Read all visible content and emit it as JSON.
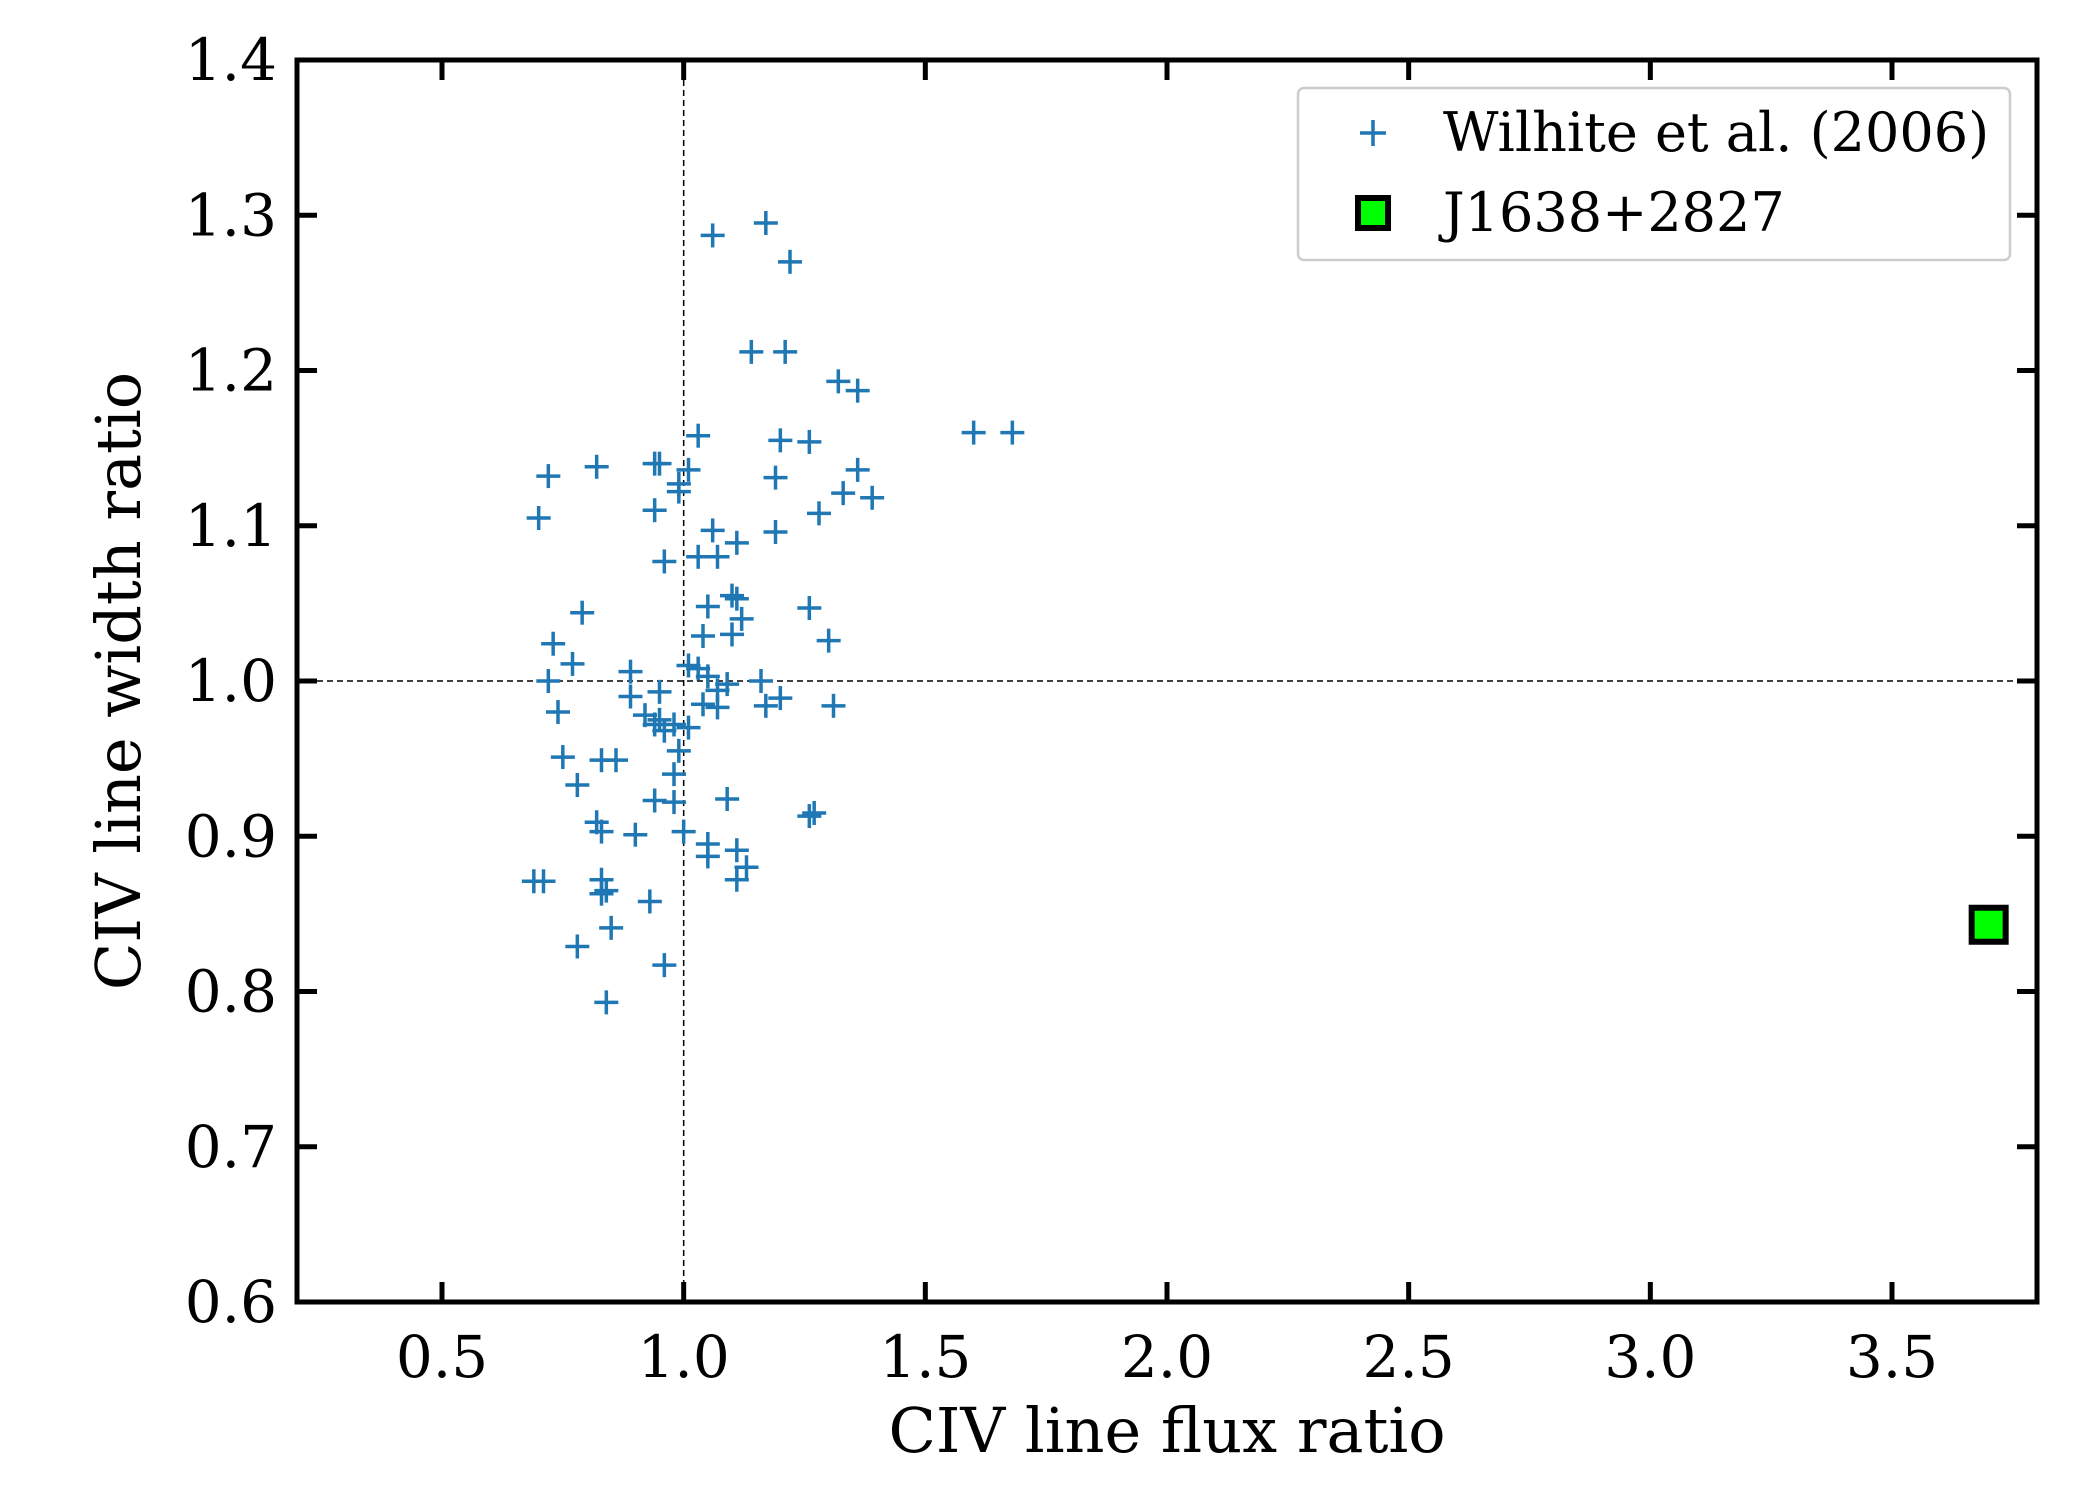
{
  "chart_data": {
    "type": "scatter",
    "xlabel": "CIV line flux  ratio",
    "ylabel": "CIV line width ratio",
    "xlim": [
      0.2,
      3.8
    ],
    "ylim": [
      0.6,
      1.4
    ],
    "x_ticks": [
      "0.5",
      "1.0",
      "1.5",
      "2.0",
      "2.5",
      "3.0",
      "3.5"
    ],
    "y_ticks": [
      "0.6",
      "0.7",
      "0.8",
      "0.9",
      "1.0",
      "1.1",
      "1.2",
      "1.3",
      "1.4"
    ],
    "reference_lines": {
      "x": 1.0,
      "y": 1.0
    },
    "legend_position": "top-right",
    "series": [
      {
        "name": "Wilhite et al. (2006)",
        "marker": "plus",
        "color": "#1f77b4",
        "points": [
          [
            1.06,
            1.287
          ],
          [
            1.17,
            1.295
          ],
          [
            1.22,
            1.27
          ],
          [
            1.14,
            1.212
          ],
          [
            1.21,
            1.212
          ],
          [
            1.32,
            1.193
          ],
          [
            1.36,
            1.187
          ],
          [
            1.6,
            1.16
          ],
          [
            1.68,
            1.16
          ],
          [
            1.03,
            1.158
          ],
          [
            1.2,
            1.155
          ],
          [
            1.26,
            1.154
          ],
          [
            0.72,
            1.132
          ],
          [
            0.82,
            1.138
          ],
          [
            0.94,
            1.14
          ],
          [
            0.95,
            1.14
          ],
          [
            1.01,
            1.136
          ],
          [
            1.36,
            1.136
          ],
          [
            1.19,
            1.131
          ],
          [
            0.99,
            1.127
          ],
          [
            0.99,
            1.122
          ],
          [
            1.33,
            1.121
          ],
          [
            1.39,
            1.118
          ],
          [
            0.94,
            1.11
          ],
          [
            1.28,
            1.108
          ],
          [
            0.7,
            1.105
          ],
          [
            1.06,
            1.097
          ],
          [
            1.19,
            1.096
          ],
          [
            1.11,
            1.089
          ],
          [
            1.03,
            1.08
          ],
          [
            1.07,
            1.08
          ],
          [
            0.96,
            1.077
          ],
          [
            1.1,
            1.055
          ],
          [
            1.11,
            1.053
          ],
          [
            1.05,
            1.048
          ],
          [
            1.26,
            1.047
          ],
          [
            0.79,
            1.044
          ],
          [
            1.12,
            1.04
          ],
          [
            0.73,
            1.024
          ],
          [
            1.04,
            1.029
          ],
          [
            1.1,
            1.03
          ],
          [
            1.3,
            1.026
          ],
          [
            0.77,
            1.011
          ],
          [
            1.01,
            1.01
          ],
          [
            1.03,
            1.008
          ],
          [
            0.89,
            1.006
          ],
          [
            1.05,
            1.003
          ],
          [
            1.09,
            0.998
          ],
          [
            1.16,
            1.0
          ],
          [
            1.07,
            0.994
          ],
          [
            0.72,
            1.0
          ],
          [
            0.95,
            0.993
          ],
          [
            1.2,
            0.989
          ],
          [
            0.89,
            0.99
          ],
          [
            1.17,
            0.984
          ],
          [
            1.31,
            0.984
          ],
          [
            0.74,
            0.98
          ],
          [
            1.04,
            0.985
          ],
          [
            1.07,
            0.983
          ],
          [
            0.92,
            0.978
          ],
          [
            0.95,
            0.975
          ],
          [
            0.98,
            0.972
          ],
          [
            0.94,
            0.972
          ],
          [
            1.01,
            0.97
          ],
          [
            0.96,
            0.968
          ],
          [
            0.99,
            0.955
          ],
          [
            0.75,
            0.951
          ],
          [
            0.83,
            0.949
          ],
          [
            0.86,
            0.949
          ],
          [
            0.98,
            0.94
          ],
          [
            0.78,
            0.933
          ],
          [
            0.94,
            0.923
          ],
          [
            0.98,
            0.922
          ],
          [
            1.09,
            0.924
          ],
          [
            1.26,
            0.913
          ],
          [
            1.27,
            0.915
          ],
          [
            0.82,
            0.909
          ],
          [
            0.83,
            0.903
          ],
          [
            0.9,
            0.901
          ],
          [
            1.0,
            0.903
          ],
          [
            1.05,
            0.895
          ],
          [
            1.11,
            0.891
          ],
          [
            1.05,
            0.887
          ],
          [
            1.13,
            0.88
          ],
          [
            0.69,
            0.871
          ],
          [
            0.71,
            0.871
          ],
          [
            0.83,
            0.872
          ],
          [
            1.11,
            0.872
          ],
          [
            0.83,
            0.863
          ],
          [
            0.84,
            0.865
          ],
          [
            0.93,
            0.858
          ],
          [
            0.85,
            0.841
          ],
          [
            0.78,
            0.829
          ],
          [
            0.96,
            0.817
          ],
          [
            0.84,
            0.793
          ]
        ]
      },
      {
        "name": "J1638+2827",
        "marker": "square",
        "color": "#00ff00",
        "edge_color": "#000000",
        "points": [
          [
            3.7,
            0.843
          ]
        ]
      }
    ]
  }
}
